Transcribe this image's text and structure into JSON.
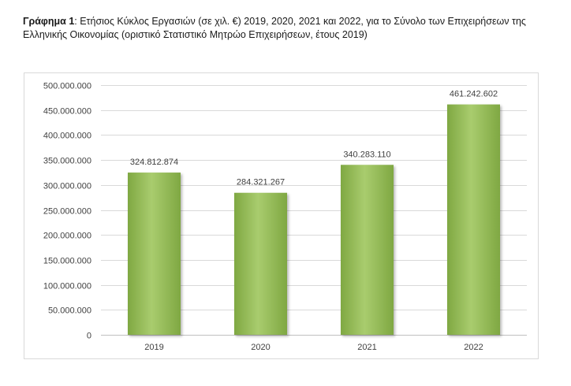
{
  "caption": {
    "bold": "Γράφημα 1",
    "rest": ": Ετήσιος Κύκλος Εργασιών (σε χιλ. €) 2019, 2020, 2021 και 2022, για το Σύνολο των Επιχειρήσεων της Ελληνικής Οικονομίας (οριστικό Στατιστικό Μητρώο Επιχειρήσεων, έτους 2019)"
  },
  "chart_data": {
    "type": "bar",
    "categories": [
      "2019",
      "2020",
      "2021",
      "2022"
    ],
    "values": [
      324812874,
      284321267,
      340283110,
      461242602
    ],
    "value_labels": [
      "324.812.874",
      "284.321.267",
      "340.283.110",
      "461.242.602"
    ],
    "ylim": [
      0,
      500000000
    ],
    "y_ticks": [
      0,
      50000000,
      100000000,
      150000000,
      200000000,
      250000000,
      300000000,
      350000000,
      400000000,
      450000000,
      500000000
    ],
    "y_tick_labels": [
      "0",
      "50.000.000",
      "100.000.000",
      "150.000.000",
      "200.000.000",
      "250.000.000",
      "300.000.000",
      "350.000.000",
      "400.000.000",
      "450.000.000",
      "500.000.000"
    ],
    "grid": true,
    "legend": "none",
    "bar_color": "#8DB450",
    "title": "",
    "xlabel": "",
    "ylabel": ""
  }
}
